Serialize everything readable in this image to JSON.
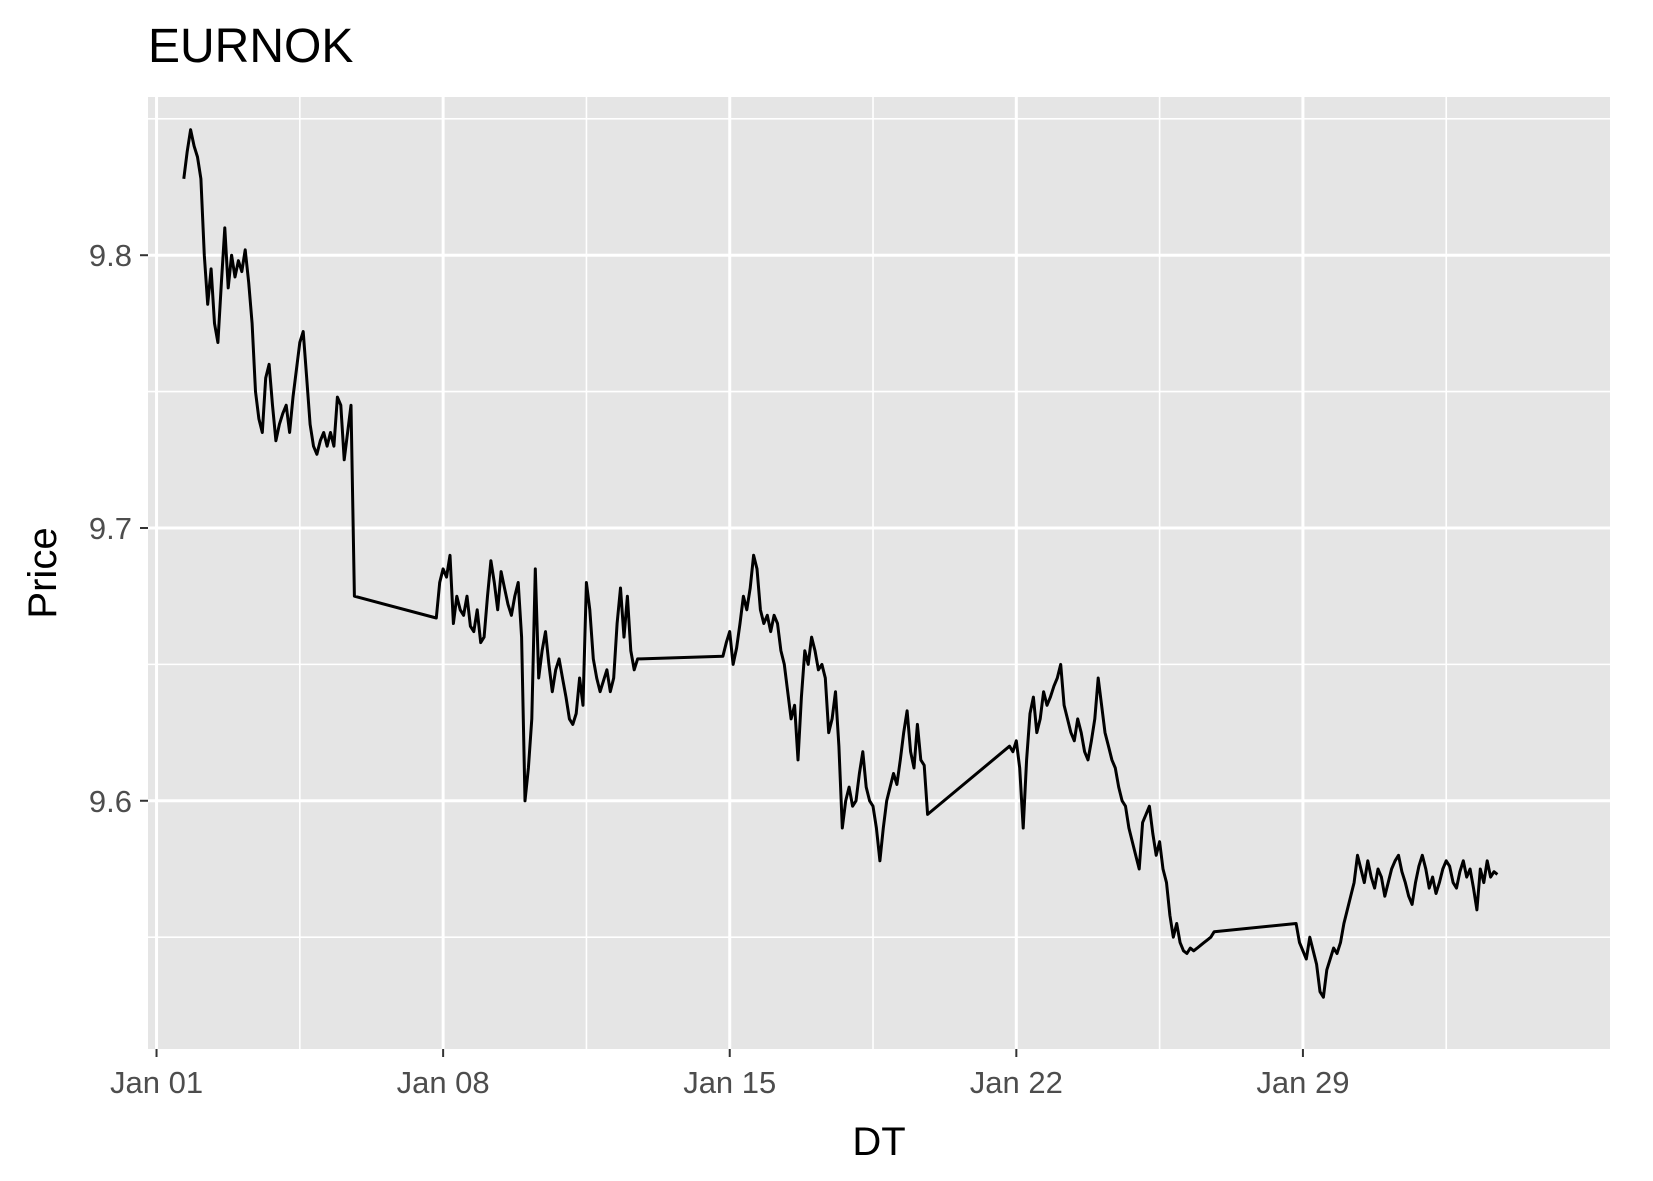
{
  "chart_data": {
    "type": "line",
    "title": "EURNOK",
    "xlabel": "DT",
    "ylabel": "Price",
    "x_axis": {
      "type": "date",
      "range": [
        "2023-12-31T19:00",
        "2024-02-05T12:00"
      ],
      "ticks": [
        "2024-01-01",
        "2024-01-08",
        "2024-01-15",
        "2024-01-22",
        "2024-01-29"
      ],
      "tick_labels": [
        "Jan 01",
        "Jan 08",
        "Jan 15",
        "Jan 22",
        "Jan 29"
      ]
    },
    "y_axis": {
      "range": [
        9.509,
        9.858
      ],
      "ticks": [
        9.6,
        9.7,
        9.8
      ],
      "tick_labels": [
        "9.6",
        "9.7",
        "9.8"
      ]
    },
    "grid": true,
    "legend": "none",
    "colors": {
      "panel": "#e5e5e5",
      "grid": "#ffffff",
      "line": "#000000",
      "text": "#4d4d4d"
    },
    "series": [
      {
        "x": [
          "2024-01-01T16:00",
          "2024-01-01T18:00",
          "2024-01-01T20:00",
          "2024-01-01T22:00",
          "2024-01-02T00:00",
          "2024-01-02T02:00",
          "2024-01-02T04:00",
          "2024-01-02T06:00",
          "2024-01-02T08:00",
          "2024-01-02T10:00",
          "2024-01-02T12:00",
          "2024-01-02T14:00",
          "2024-01-02T16:00",
          "2024-01-02T18:00",
          "2024-01-02T20:00",
          "2024-01-02T22:00",
          "2024-01-03T00:00",
          "2024-01-03T02:00",
          "2024-01-03T04:00",
          "2024-01-03T06:00",
          "2024-01-03T08:00",
          "2024-01-03T10:00",
          "2024-01-03T12:00",
          "2024-01-03T14:00",
          "2024-01-03T16:00",
          "2024-01-03T18:00",
          "2024-01-03T20:00",
          "2024-01-03T22:00",
          "2024-01-04T00:00",
          "2024-01-04T02:00",
          "2024-01-04T04:00",
          "2024-01-04T06:00",
          "2024-01-04T08:00",
          "2024-01-04T10:00",
          "2024-01-04T12:00",
          "2024-01-04T14:00",
          "2024-01-04T16:00",
          "2024-01-04T18:00",
          "2024-01-04T20:00",
          "2024-01-04T22:00",
          "2024-01-05T00:00",
          "2024-01-05T02:00",
          "2024-01-05T04:00",
          "2024-01-05T06:00",
          "2024-01-05T08:00",
          "2024-01-05T10:00",
          "2024-01-05T12:00",
          "2024-01-05T14:00",
          "2024-01-05T16:00",
          "2024-01-05T18:00",
          "2024-01-05T20:00",
          "2024-01-07T20:00",
          "2024-01-07T22:00",
          "2024-01-08T00:00",
          "2024-01-08T02:00",
          "2024-01-08T04:00",
          "2024-01-08T06:00",
          "2024-01-08T08:00",
          "2024-01-08T10:00",
          "2024-01-08T12:00",
          "2024-01-08T14:00",
          "2024-01-08T16:00",
          "2024-01-08T18:00",
          "2024-01-08T20:00",
          "2024-01-08T22:00",
          "2024-01-09T00:00",
          "2024-01-09T02:00",
          "2024-01-09T04:00",
          "2024-01-09T06:00",
          "2024-01-09T08:00",
          "2024-01-09T10:00",
          "2024-01-09T12:00",
          "2024-01-09T14:00",
          "2024-01-09T16:00",
          "2024-01-09T18:00",
          "2024-01-09T20:00",
          "2024-01-09T22:00",
          "2024-01-10T00:00",
          "2024-01-10T02:00",
          "2024-01-10T04:00",
          "2024-01-10T06:00",
          "2024-01-10T08:00",
          "2024-01-10T10:00",
          "2024-01-10T12:00",
          "2024-01-10T14:00",
          "2024-01-10T16:00",
          "2024-01-10T18:00",
          "2024-01-10T20:00",
          "2024-01-10T22:00",
          "2024-01-11T00:00",
          "2024-01-11T02:00",
          "2024-01-11T04:00",
          "2024-01-11T06:00",
          "2024-01-11T08:00",
          "2024-01-11T10:00",
          "2024-01-11T12:00",
          "2024-01-11T14:00",
          "2024-01-11T16:00",
          "2024-01-11T18:00",
          "2024-01-11T20:00",
          "2024-01-11T22:00",
          "2024-01-12T00:00",
          "2024-01-12T02:00",
          "2024-01-12T04:00",
          "2024-01-12T06:00",
          "2024-01-12T08:00",
          "2024-01-12T10:00",
          "2024-01-12T12:00",
          "2024-01-12T14:00",
          "2024-01-12T16:00",
          "2024-01-12T18:00",
          "2024-01-12T20:00",
          "2024-01-14T20:00",
          "2024-01-14T22:00",
          "2024-01-15T00:00",
          "2024-01-15T02:00",
          "2024-01-15T04:00",
          "2024-01-15T06:00",
          "2024-01-15T08:00",
          "2024-01-15T10:00",
          "2024-01-15T12:00",
          "2024-01-15T14:00",
          "2024-01-15T16:00",
          "2024-01-15T18:00",
          "2024-01-15T20:00",
          "2024-01-15T22:00",
          "2024-01-16T00:00",
          "2024-01-16T02:00",
          "2024-01-16T04:00",
          "2024-01-16T06:00",
          "2024-01-16T08:00",
          "2024-01-16T10:00",
          "2024-01-16T12:00",
          "2024-01-16T14:00",
          "2024-01-16T16:00",
          "2024-01-16T18:00",
          "2024-01-16T20:00",
          "2024-01-16T22:00",
          "2024-01-17T00:00",
          "2024-01-17T02:00",
          "2024-01-17T04:00",
          "2024-01-17T06:00",
          "2024-01-17T08:00",
          "2024-01-17T10:00",
          "2024-01-17T12:00",
          "2024-01-17T14:00",
          "2024-01-17T16:00",
          "2024-01-17T18:00",
          "2024-01-17T20:00",
          "2024-01-17T22:00",
          "2024-01-18T00:00",
          "2024-01-18T02:00",
          "2024-01-18T04:00",
          "2024-01-18T06:00",
          "2024-01-18T08:00",
          "2024-01-18T10:00",
          "2024-01-18T12:00",
          "2024-01-18T14:00",
          "2024-01-18T16:00",
          "2024-01-18T18:00",
          "2024-01-18T20:00",
          "2024-01-18T22:00",
          "2024-01-19T00:00",
          "2024-01-19T02:00",
          "2024-01-19T04:00",
          "2024-01-19T06:00",
          "2024-01-19T08:00",
          "2024-01-19T10:00",
          "2024-01-19T12:00",
          "2024-01-19T14:00",
          "2024-01-19T16:00",
          "2024-01-19T18:00",
          "2024-01-19T20:00",
          "2024-01-21T20:00",
          "2024-01-21T22:00",
          "2024-01-22T00:00",
          "2024-01-22T02:00",
          "2024-01-22T04:00",
          "2024-01-22T06:00",
          "2024-01-22T08:00",
          "2024-01-22T10:00",
          "2024-01-22T12:00",
          "2024-01-22T14:00",
          "2024-01-22T16:00",
          "2024-01-22T18:00",
          "2024-01-22T20:00",
          "2024-01-22T22:00",
          "2024-01-23T00:00",
          "2024-01-23T02:00",
          "2024-01-23T04:00",
          "2024-01-23T06:00",
          "2024-01-23T08:00",
          "2024-01-23T10:00",
          "2024-01-23T12:00",
          "2024-01-23T14:00",
          "2024-01-23T16:00",
          "2024-01-23T18:00",
          "2024-01-23T20:00",
          "2024-01-23T22:00",
          "2024-01-24T00:00",
          "2024-01-24T02:00",
          "2024-01-24T04:00",
          "2024-01-24T06:00",
          "2024-01-24T08:00",
          "2024-01-24T10:00",
          "2024-01-24T12:00",
          "2024-01-24T14:00",
          "2024-01-24T16:00",
          "2024-01-24T18:00",
          "2024-01-24T20:00",
          "2024-01-24T22:00",
          "2024-01-25T00:00",
          "2024-01-25T02:00",
          "2024-01-25T04:00",
          "2024-01-25T06:00",
          "2024-01-25T08:00",
          "2024-01-25T10:00",
          "2024-01-25T12:00",
          "2024-01-25T14:00",
          "2024-01-25T16:00",
          "2024-01-25T18:00",
          "2024-01-25T20:00",
          "2024-01-25T22:00",
          "2024-01-26T00:00",
          "2024-01-26T02:00",
          "2024-01-26T04:00",
          "2024-01-26T06:00",
          "2024-01-26T08:00",
          "2024-01-26T10:00",
          "2024-01-26T12:00",
          "2024-01-26T14:00",
          "2024-01-26T16:00",
          "2024-01-26T18:00",
          "2024-01-26T20:00",
          "2024-01-28T20:00",
          "2024-01-28T22:00",
          "2024-01-29T00:00",
          "2024-01-29T02:00",
          "2024-01-29T04:00",
          "2024-01-29T06:00",
          "2024-01-29T08:00",
          "2024-01-29T10:00",
          "2024-01-29T12:00",
          "2024-01-29T14:00",
          "2024-01-29T16:00",
          "2024-01-29T18:00",
          "2024-01-29T20:00",
          "2024-01-29T22:00",
          "2024-01-30T00:00",
          "2024-01-30T02:00",
          "2024-01-30T04:00",
          "2024-01-30T06:00",
          "2024-01-30T08:00",
          "2024-01-30T10:00",
          "2024-01-30T12:00",
          "2024-01-30T14:00",
          "2024-01-30T16:00",
          "2024-01-30T18:00",
          "2024-01-30T20:00",
          "2024-01-30T22:00",
          "2024-01-31T00:00",
          "2024-01-31T02:00",
          "2024-01-31T04:00",
          "2024-01-31T06:00",
          "2024-01-31T08:00",
          "2024-01-31T10:00",
          "2024-01-31T12:00",
          "2024-01-31T14:00",
          "2024-01-31T16:00",
          "2024-01-31T18:00",
          "2024-01-31T20:00",
          "2024-01-31T22:00",
          "2024-02-01T00:00",
          "2024-02-01T02:00",
          "2024-02-01T04:00",
          "2024-02-01T06:00",
          "2024-02-01T08:00",
          "2024-02-01T10:00",
          "2024-02-01T12:00",
          "2024-02-01T14:00",
          "2024-02-01T16:00",
          "2024-02-01T18:00",
          "2024-02-01T20:00",
          "2024-02-01T22:00",
          "2024-02-02T00:00",
          "2024-02-02T02:00",
          "2024-02-02T04:00",
          "2024-02-02T06:00",
          "2024-02-02T08:00",
          "2024-02-02T10:00",
          "2024-02-02T12:00",
          "2024-02-02T14:00",
          "2024-02-02T16:00",
          "2024-02-02T18:00"
        ],
        "y": [
          9.828,
          9.838,
          9.846,
          9.84,
          9.836,
          9.828,
          9.8,
          9.782,
          9.795,
          9.775,
          9.768,
          9.79,
          9.81,
          9.788,
          9.8,
          9.792,
          9.798,
          9.794,
          9.802,
          9.79,
          9.775,
          9.75,
          9.74,
          9.735,
          9.755,
          9.76,
          9.745,
          9.732,
          9.738,
          9.742,
          9.745,
          9.735,
          9.748,
          9.758,
          9.768,
          9.772,
          9.755,
          9.738,
          9.73,
          9.727,
          9.732,
          9.735,
          9.73,
          9.735,
          9.73,
          9.748,
          9.745,
          9.725,
          9.735,
          9.745,
          9.675,
          9.667,
          9.68,
          9.685,
          9.682,
          9.69,
          9.665,
          9.675,
          9.67,
          9.668,
          9.675,
          9.664,
          9.662,
          9.67,
          9.658,
          9.66,
          9.675,
          9.688,
          9.68,
          9.67,
          9.684,
          9.678,
          9.672,
          9.668,
          9.675,
          9.68,
          9.66,
          9.6,
          9.612,
          9.63,
          9.685,
          9.645,
          9.655,
          9.662,
          9.65,
          9.64,
          9.648,
          9.652,
          9.645,
          9.638,
          9.63,
          9.628,
          9.632,
          9.645,
          9.635,
          9.68,
          9.67,
          9.652,
          9.645,
          9.64,
          9.644,
          9.648,
          9.64,
          9.645,
          9.665,
          9.678,
          9.66,
          9.675,
          9.655,
          9.648,
          9.652,
          9.652,
          9.653,
          9.658,
          9.662,
          9.65,
          9.656,
          9.665,
          9.675,
          9.67,
          9.678,
          9.69,
          9.685,
          9.67,
          9.665,
          9.668,
          9.662,
          9.668,
          9.665,
          9.655,
          9.65,
          9.64,
          9.63,
          9.635,
          9.615,
          9.638,
          9.655,
          9.65,
          9.66,
          9.655,
          9.648,
          9.65,
          9.645,
          9.625,
          9.63,
          9.64,
          9.62,
          9.59,
          9.6,
          9.605,
          9.598,
          9.6,
          9.61,
          9.618,
          9.605,
          9.6,
          9.598,
          9.59,
          9.578,
          9.59,
          9.6,
          9.605,
          9.61,
          9.606,
          9.615,
          9.625,
          9.633,
          9.618,
          9.612,
          9.628,
          9.615,
          9.613,
          9.595,
          9.62,
          9.618,
          9.622,
          9.612,
          9.59,
          9.615,
          9.632,
          9.638,
          9.625,
          9.63,
          9.64,
          9.635,
          9.638,
          9.642,
          9.645,
          9.65,
          9.635,
          9.63,
          9.625,
          9.622,
          9.63,
          9.625,
          9.618,
          9.615,
          9.622,
          9.63,
          9.645,
          9.635,
          9.625,
          9.62,
          9.615,
          9.612,
          9.605,
          9.6,
          9.598,
          9.59,
          9.585,
          9.58,
          9.575,
          9.592,
          9.595,
          9.598,
          9.588,
          9.58,
          9.585,
          9.575,
          9.57,
          9.558,
          9.55,
          9.555,
          9.548,
          9.545,
          9.544,
          9.546,
          9.545,
          9.546,
          9.547,
          9.548,
          9.549,
          9.55,
          9.552,
          9.555,
          9.548,
          9.545,
          9.542,
          9.55,
          9.545,
          9.54,
          9.53,
          9.528,
          9.538,
          9.542,
          9.546,
          9.544,
          9.548,
          9.555,
          9.56,
          9.565,
          9.57,
          9.58,
          9.575,
          9.57,
          9.578,
          9.572,
          9.568,
          9.575,
          9.572,
          9.565,
          9.57,
          9.575,
          9.578,
          9.58,
          9.574,
          9.57,
          9.565,
          9.562,
          9.57,
          9.576,
          9.58,
          9.575,
          9.568,
          9.572,
          9.566,
          9.57,
          9.575,
          9.578,
          9.576,
          9.57,
          9.568,
          9.574,
          9.578,
          9.572,
          9.575,
          9.568,
          9.56,
          9.575,
          9.57,
          9.578,
          9.572,
          9.574,
          9.573
        ]
      }
    ]
  }
}
